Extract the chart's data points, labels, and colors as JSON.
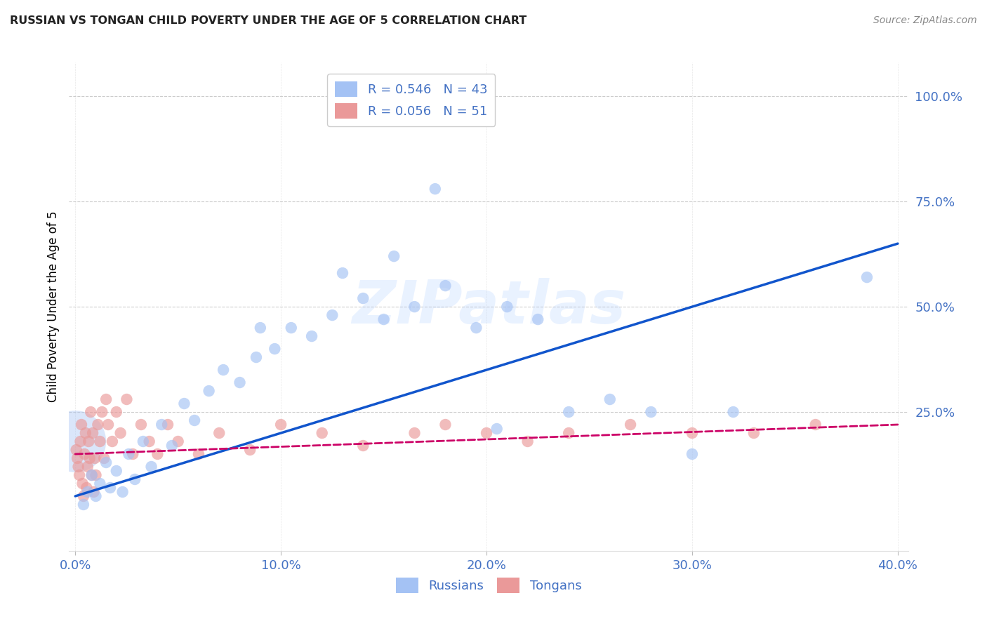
{
  "title": "RUSSIAN VS TONGAN CHILD POVERTY UNDER THE AGE OF 5 CORRELATION CHART",
  "source": "Source: ZipAtlas.com",
  "ylabel": "Child Poverty Under the Age of 5",
  "x_tick_labels": [
    "0.0%",
    "10.0%",
    "20.0%",
    "30.0%",
    "40.0%"
  ],
  "x_tick_vals": [
    0.0,
    10.0,
    20.0,
    30.0,
    40.0
  ],
  "y_tick_labels": [
    "100.0%",
    "75.0%",
    "50.0%",
    "25.0%"
  ],
  "y_tick_vals": [
    100.0,
    75.0,
    50.0,
    25.0
  ],
  "xlim": [
    -0.3,
    40.5
  ],
  "ylim": [
    -8.0,
    108.0
  ],
  "russian_R": 0.546,
  "russian_N": 43,
  "tongan_R": 0.056,
  "tongan_N": 51,
  "russian_color": "#a4c2f4",
  "tongan_color": "#ea9999",
  "russian_line_color": "#1155cc",
  "tongan_line_color": "#cc0066",
  "background_color": "#ffffff",
  "watermark_text": "ZIPatlas",
  "legend_label_russian": "Russians",
  "legend_label_tongan": "Tongans",
  "russians_x": [
    0.4,
    0.6,
    0.8,
    1.0,
    1.2,
    1.5,
    1.7,
    2.0,
    2.3,
    2.6,
    2.9,
    3.3,
    3.7,
    4.2,
    4.7,
    5.3,
    5.8,
    6.5,
    7.2,
    8.0,
    8.8,
    9.7,
    10.5,
    11.5,
    12.5,
    14.0,
    15.0,
    16.5,
    18.0,
    19.5,
    21.0,
    22.5,
    24.0,
    26.0,
    28.0,
    30.0,
    32.0,
    38.5,
    13.0,
    17.5,
    20.5,
    15.5,
    9.0
  ],
  "russians_y": [
    3.0,
    6.0,
    10.0,
    5.0,
    8.0,
    13.0,
    7.0,
    11.0,
    6.0,
    15.0,
    9.0,
    18.0,
    12.0,
    22.0,
    17.0,
    27.0,
    23.0,
    30.0,
    35.0,
    32.0,
    38.0,
    40.0,
    45.0,
    43.0,
    48.0,
    52.0,
    47.0,
    50.0,
    55.0,
    45.0,
    50.0,
    47.0,
    25.0,
    28.0,
    25.0,
    15.0,
    25.0,
    57.0,
    58.0,
    78.0,
    21.0,
    62.0,
    45.0
  ],
  "tongans_x": [
    0.05,
    0.1,
    0.15,
    0.2,
    0.25,
    0.3,
    0.35,
    0.4,
    0.45,
    0.5,
    0.55,
    0.6,
    0.65,
    0.7,
    0.75,
    0.8,
    0.85,
    0.9,
    0.95,
    1.0,
    1.1,
    1.2,
    1.3,
    1.4,
    1.5,
    1.6,
    1.8,
    2.0,
    2.2,
    2.5,
    2.8,
    3.2,
    3.6,
    4.0,
    4.5,
    5.0,
    6.0,
    7.0,
    8.5,
    10.0,
    12.0,
    14.0,
    16.5,
    18.0,
    20.0,
    22.0,
    24.0,
    27.0,
    30.0,
    33.0,
    36.0
  ],
  "tongans_y": [
    16.0,
    14.0,
    12.0,
    10.0,
    18.0,
    22.0,
    8.0,
    5.0,
    15.0,
    20.0,
    7.0,
    12.0,
    18.0,
    14.0,
    25.0,
    10.0,
    20.0,
    6.0,
    14.0,
    10.0,
    22.0,
    18.0,
    25.0,
    14.0,
    28.0,
    22.0,
    18.0,
    25.0,
    20.0,
    28.0,
    15.0,
    22.0,
    18.0,
    15.0,
    22.0,
    18.0,
    15.0,
    20.0,
    16.0,
    22.0,
    20.0,
    17.0,
    20.0,
    22.0,
    20.0,
    18.0,
    20.0,
    22.0,
    20.0,
    20.0,
    22.0
  ],
  "large_russian_x": 0.0,
  "large_russian_y": 18.0,
  "large_russian_size": 4000,
  "dot_size": 140,
  "russian_line_x0": 0.0,
  "russian_line_y0": 5.0,
  "russian_line_x1": 40.0,
  "russian_line_y1": 65.0,
  "tongan_line_x0": 0.0,
  "tongan_line_y0": 15.0,
  "tongan_line_x1": 40.0,
  "tongan_line_y1": 22.0
}
